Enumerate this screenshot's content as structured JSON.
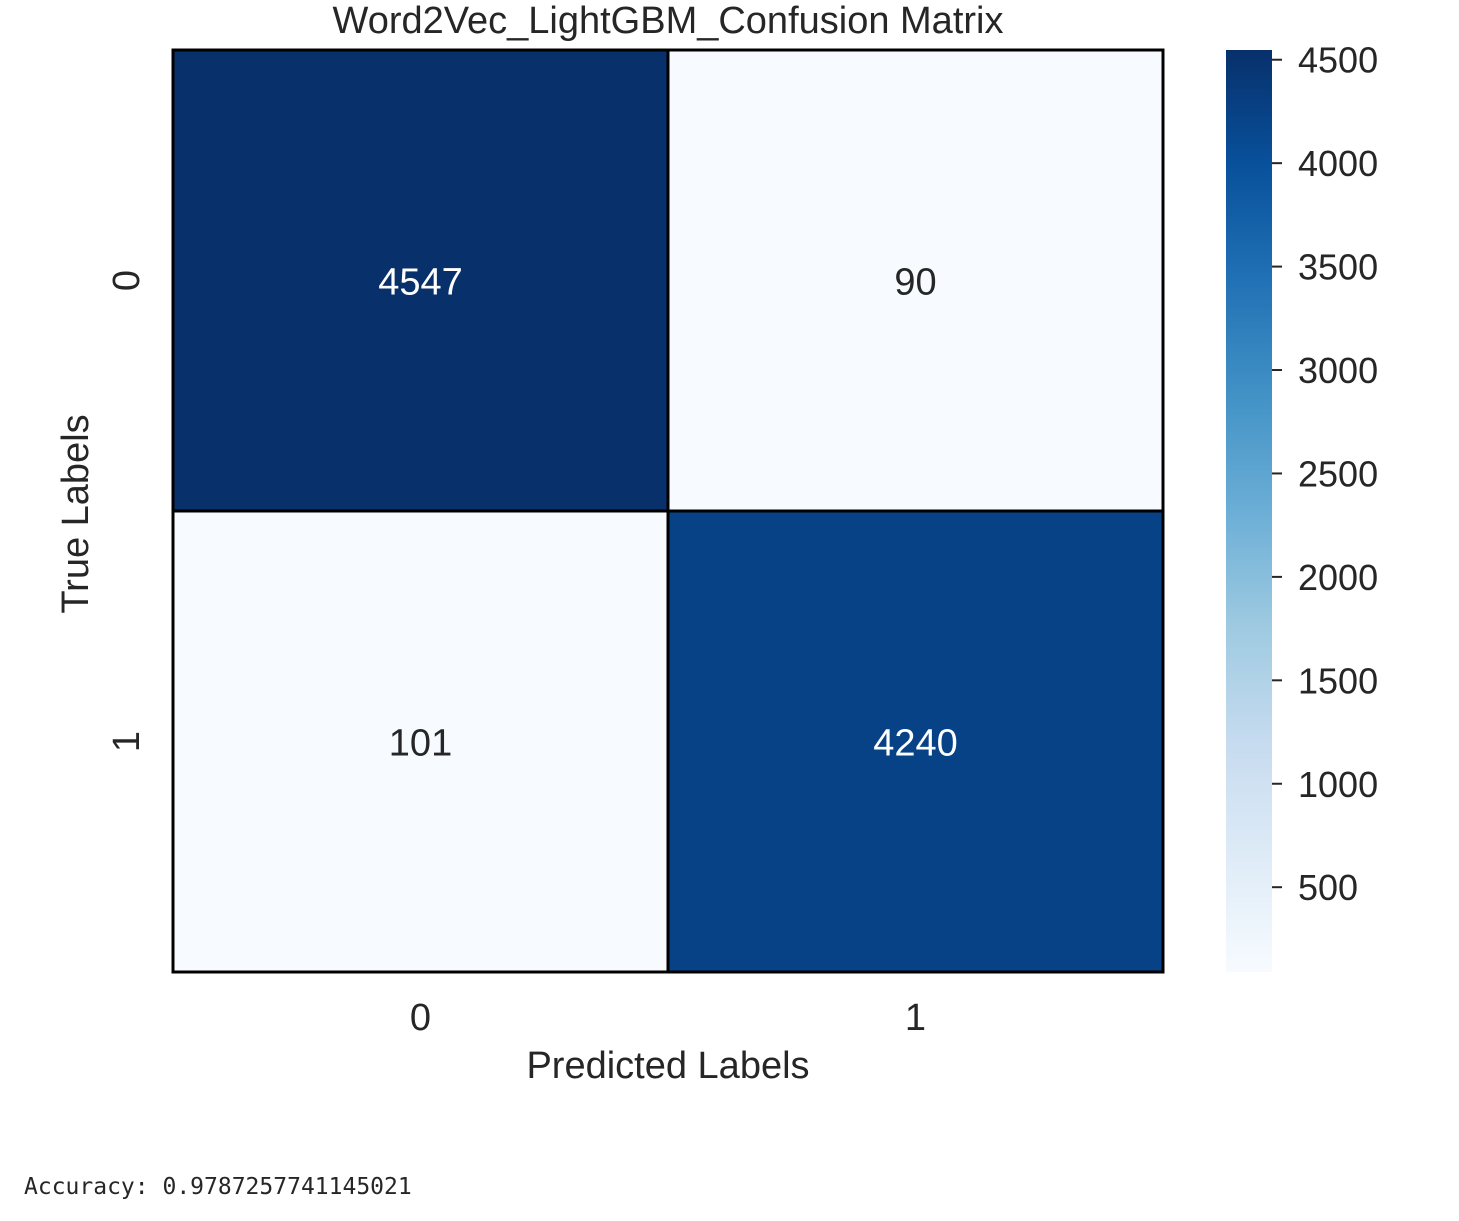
{
  "chart_data": {
    "type": "heatmap",
    "title": "Word2Vec_LightGBM_Confusion Matrix",
    "xlabel": "Predicted Labels",
    "ylabel": "True Labels",
    "x_categories": [
      "0",
      "1"
    ],
    "y_categories": [
      "0",
      "1"
    ],
    "values": [
      [
        4547,
        90
      ],
      [
        101,
        4240
      ]
    ],
    "colormap": "Blues",
    "colorbar": {
      "min": 90,
      "max": 4547,
      "ticks": [
        500,
        1000,
        1500,
        2000,
        2500,
        3000,
        3500,
        4000,
        4500
      ]
    },
    "cell_border_color": "#000000",
    "light_text_color": "#ffffff",
    "dark_text_color": "#262626"
  },
  "output": {
    "accuracy_line": "Accuracy: 0.9787257741145021"
  }
}
